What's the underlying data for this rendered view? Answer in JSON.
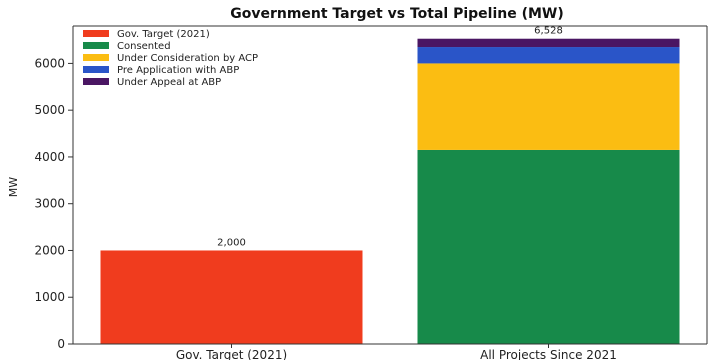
{
  "chart_data": {
    "type": "bar",
    "stacked": true,
    "title": "Government Target vs Total Pipeline (MW)",
    "xlabel": "",
    "ylabel": "MW",
    "categories": [
      "Gov. Target (2021)",
      "All Projects Since 2021"
    ],
    "ylim": [
      0,
      6800
    ],
    "yticks": [
      0,
      1000,
      2000,
      3000,
      4000,
      5000,
      6000
    ],
    "grid": false,
    "legend_position": "top-left",
    "series": [
      {
        "name": "Gov. Target (2021)",
        "color": "#f03c1e",
        "values": [
          2000,
          0
        ]
      },
      {
        "name": "Consented",
        "color": "#178a4a",
        "values": [
          0,
          4150
        ]
      },
      {
        "name": "Under Consideration by ACP",
        "color": "#fbbd12",
        "values": [
          0,
          1850
        ]
      },
      {
        "name": "Pre Application with ABP",
        "color": "#2a55c8",
        "values": [
          0,
          350
        ]
      },
      {
        "name": "Under Appeal at ABP",
        "color": "#4a1663",
        "values": [
          0,
          178
        ]
      }
    ],
    "data_labels": [
      "2,000",
      "6,528"
    ]
  }
}
